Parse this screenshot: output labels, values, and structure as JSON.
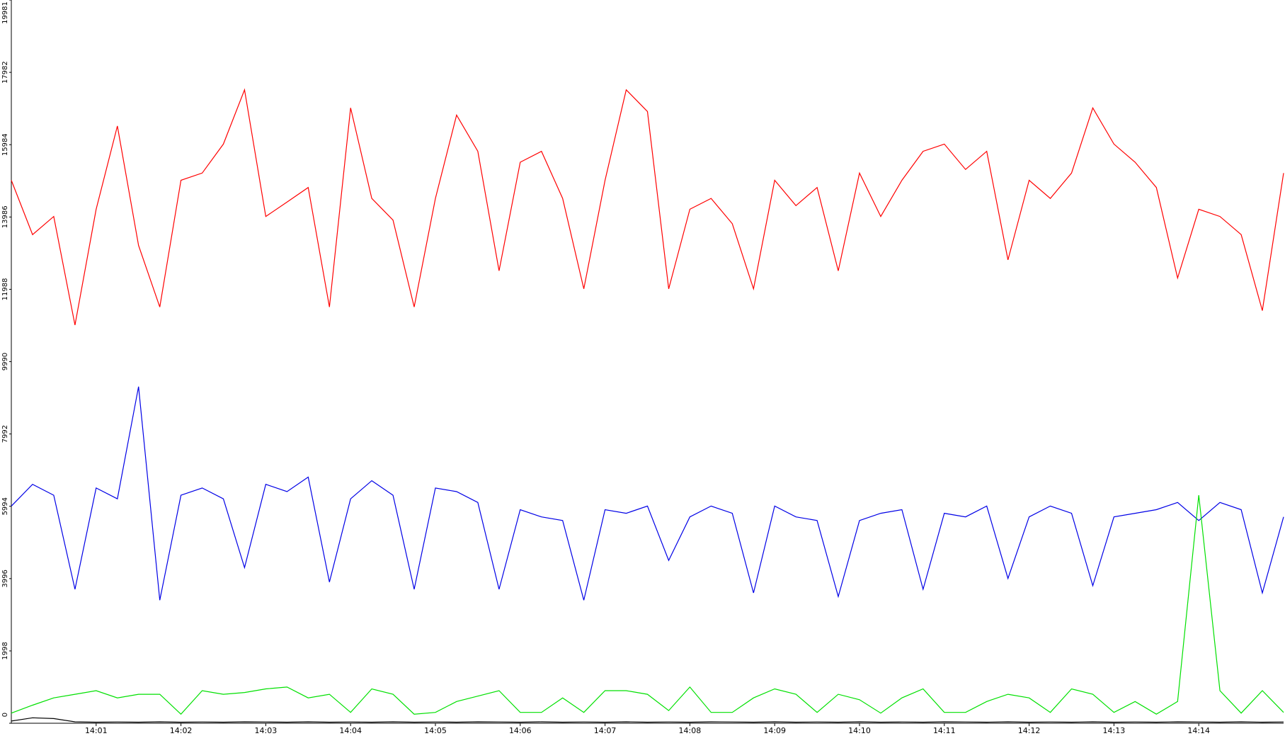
{
  "chart_data": {
    "type": "line",
    "categories": [
      null,
      null,
      null,
      null,
      "14:01",
      null,
      null,
      null,
      "14:02",
      null,
      null,
      null,
      "14:03",
      null,
      null,
      null,
      "14:04",
      null,
      null,
      null,
      "14:05",
      null,
      null,
      null,
      "14:06",
      null,
      null,
      null,
      "14:07",
      null,
      null,
      null,
      "14:08",
      null,
      null,
      null,
      "14:09",
      null,
      null,
      null,
      "14:10",
      null,
      null,
      null,
      "14:11",
      null,
      null,
      null,
      "14:12",
      null,
      null,
      null,
      "14:13",
      null,
      null,
      null,
      "14:14",
      null,
      null,
      null,
      null
    ],
    "series": [
      {
        "color": "#ff0000",
        "values": [
          15000,
          13500,
          14000,
          11000,
          14200,
          16500,
          13200,
          11500,
          15000,
          15200,
          16000,
          17500,
          14000,
          14400,
          14800,
          11500,
          17000,
          14500,
          13900,
          11500,
          14500,
          16800,
          15800,
          12500,
          15500,
          15800,
          14500,
          12000,
          15000,
          17500,
          16900,
          12000,
          14200,
          14500,
          13800,
          12000,
          15000,
          14300,
          14800,
          12500,
          15200,
          14000,
          15000,
          15800,
          16000,
          15300,
          15800,
          12800,
          15000,
          14500,
          15200,
          17000,
          16000,
          15500,
          14800,
          12300,
          14200,
          14000,
          13500,
          11400,
          15200
        ]
      },
      {
        "color": "#0000e6",
        "values": [
          6000,
          6600,
          6300,
          3700,
          6500,
          6200,
          9300,
          3400,
          6300,
          6500,
          6200,
          4300,
          6600,
          6400,
          6800,
          3900,
          6200,
          6700,
          6300,
          3700,
          6500,
          6400,
          6100,
          3700,
          5900,
          5700,
          5600,
          3400,
          5900,
          5800,
          6000,
          4500,
          5700,
          6000,
          5800,
          3600,
          6000,
          5700,
          5600,
          3500,
          5600,
          5800,
          5900,
          3700,
          5800,
          5700,
          6000,
          4000,
          5700,
          6000,
          5800,
          3800,
          5700,
          5800,
          5900,
          6100,
          5600,
          6100,
          5900,
          3600,
          5700
        ]
      },
      {
        "color": "#00e000",
        "values": [
          280,
          500,
          700,
          800,
          900,
          700,
          800,
          800,
          250,
          900,
          800,
          850,
          950,
          1000,
          700,
          800,
          300,
          950,
          800,
          250,
          300,
          600,
          750,
          900,
          300,
          300,
          700,
          300,
          900,
          900,
          800,
          350,
          1000,
          300,
          300,
          700,
          950,
          800,
          300,
          800,
          650,
          280,
          700,
          950,
          300,
          300,
          600,
          800,
          700,
          300,
          950,
          800,
          300,
          600,
          250,
          600,
          6300,
          900,
          280,
          900,
          300
        ]
      },
      {
        "color": "#000000",
        "values": [
          60,
          150,
          130,
          40,
          30,
          35,
          30,
          40,
          30,
          35,
          30,
          40,
          35,
          30,
          40,
          30,
          35,
          30,
          40,
          30,
          35,
          30,
          40,
          35,
          30,
          40,
          30,
          35,
          30,
          40,
          30,
          35,
          30,
          40,
          35,
          30,
          40,
          30,
          35,
          30,
          40,
          30,
          35,
          30,
          40,
          35,
          30,
          40,
          30,
          35,
          30,
          40,
          30,
          35,
          30,
          40,
          35,
          30,
          40,
          30,
          35
        ]
      }
    ],
    "ylim": [
      0,
      19981
    ],
    "yticks": [
      0,
      1998,
      3996,
      5994,
      7992,
      9990,
      11988,
      13986,
      15984,
      17982,
      19981
    ]
  }
}
